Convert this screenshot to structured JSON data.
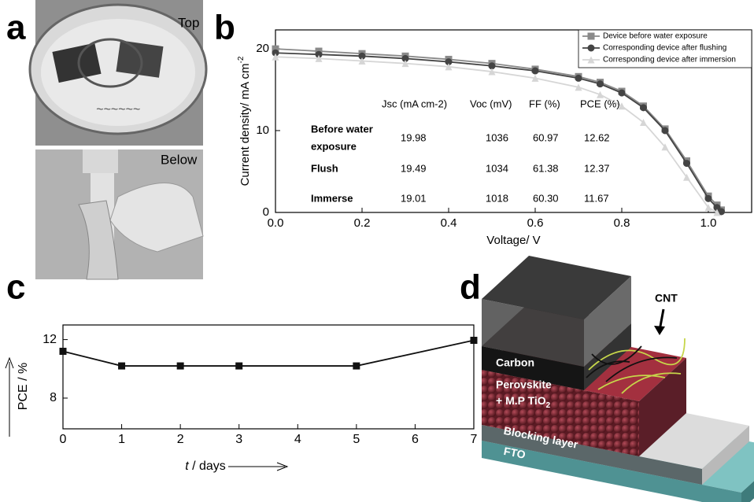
{
  "panel_labels": [
    "a",
    "b",
    "c",
    "d"
  ],
  "photos": {
    "top_label": "Top",
    "bottom_label": "Below"
  },
  "chart_data": [
    {
      "type": "line",
      "x": [
        0,
        0.1,
        0.2,
        0.3,
        0.4,
        0.5,
        0.6,
        0.7,
        0.75,
        0.8,
        0.85,
        0.9,
        0.95,
        1.0,
        1.02,
        1.03
      ],
      "series": [
        {
          "name": "Device before water exposure",
          "color": "#8a8a8a",
          "marker": "square",
          "values": [
            19.98,
            19.7,
            19.4,
            19.1,
            18.7,
            18.2,
            17.5,
            16.6,
            15.9,
            14.8,
            13.0,
            10.2,
            6.3,
            2.0,
            0.9,
            0.3
          ]
        },
        {
          "name": "Corresponding device after flushing",
          "color": "#444444",
          "marker": "circle",
          "values": [
            19.49,
            19.3,
            19.1,
            18.8,
            18.4,
            17.9,
            17.3,
            16.4,
            15.7,
            14.6,
            12.8,
            10.0,
            6.0,
            1.7,
            0.6,
            0.1
          ]
        },
        {
          "name": "Corresponding device after immersion",
          "color": "#d6d6d6",
          "marker": "triangle",
          "values": [
            19.01,
            18.8,
            18.5,
            18.2,
            17.8,
            17.2,
            16.4,
            15.3,
            14.4,
            13.0,
            11.0,
            8.0,
            4.3,
            0.6,
            0,
            null
          ]
        }
      ],
      "xlim": [
        0,
        1.1
      ],
      "xticks": [
        {
          "value": 0,
          "label": "0.0"
        },
        0.2,
        0.4,
        0.6,
        0.8,
        {
          "value": 1,
          "label": "1.0"
        }
      ],
      "ylim": [
        0,
        22.3
      ],
      "yticks": [
        0,
        10,
        20
      ],
      "x_label": "Voltage/ V",
      "y_label": "Current density/ mA cm",
      "y_label_superscript": "-2",
      "legend": "upper right",
      "table": {
        "columns": [
          "Jsc (mA cm-2)",
          "Voc (mV)",
          "FF (%)",
          "PCE (%)"
        ],
        "rows": [
          {
            "label": [
              "Before water",
              "exposure"
            ],
            "cells": [
              "19.98",
              "1036",
              "60.97",
              "12.62"
            ]
          },
          {
            "label": [
              "Flush"
            ],
            "cells": [
              "19.49",
              "1034",
              "61.38",
              "12.37"
            ]
          },
          {
            "label": [
              "Immerse"
            ],
            "cells": [
              "19.01",
              "1018",
              "60.30",
              "11.67"
            ]
          }
        ]
      }
    },
    {
      "type": "line",
      "x": [
        0,
        1,
        2,
        3,
        5,
        7
      ],
      "values": [
        11.2,
        10.2,
        10.2,
        10.2,
        10.2,
        11.95
      ],
      "color": "#111111",
      "xlim": [
        0,
        7
      ],
      "xticks": [
        0,
        1,
        2,
        3,
        4,
        5,
        6,
        7
      ],
      "ylim": [
        5.9,
        13
      ],
      "yticks": [
        8,
        12
      ],
      "x_label": [
        "t",
        "/ days"
      ],
      "y_label": "PCE / %"
    }
  ],
  "diagram": {
    "cnt": "CNT",
    "carbon": "Carbon",
    "perovskite": "Perovskite",
    "perovskite_2": [
      "+ M.P TiO",
      "2"
    ],
    "blocking": "Blocking layer",
    "fto": "FTO"
  }
}
